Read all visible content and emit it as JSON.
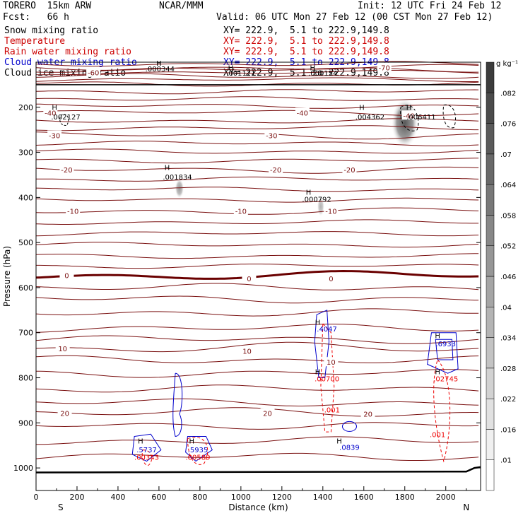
{
  "header": {
    "model": "TORERO  15km ARW",
    "org": "NCAR/MMM",
    "init": "Init: 12 UTC Fri 24 Feb 12",
    "fcst": "Fcst:   66 h",
    "valid": "Valid: 06 UTC Mon 27 Feb 12 (00 CST Mon 27 Feb 12)",
    "fields": [
      {
        "label": "Snow mixing ratio",
        "xy": "XY= 222.9,  5.1 to 222.9,149.8",
        "color": "#000000"
      },
      {
        "label": "Temperature",
        "xy": "XY= 222.9,  5.1 to 222.9,149.8",
        "color": "#cc0000"
      },
      {
        "label": "Rain water mixing ratio",
        "xy": "XY= 222.9,  5.1 to 222.9,149.8",
        "color": "#cc0000"
      },
      {
        "label": "Cloud water mixing ratio",
        "xy": "XY= 222.9,  5.1 to 222.9,149.8",
        "color": "#0000cc"
      },
      {
        "label": "Cloud ice mixing ratio",
        "xy": "XY= 222.9,  5.1 to 222.9,149.8",
        "color": "#000000"
      }
    ]
  },
  "colors": {
    "temperature": "#7a1010",
    "zero_isotherm": "#6a0000",
    "cloud_water": "#0000cc",
    "rain": "#ee0000",
    "ground": "#000000"
  },
  "chart_data": {
    "type": "cross-section",
    "xlabel": "Distance (km)",
    "ylabel": "Pressure (hPa)",
    "xlim": [
      0,
      2170
    ],
    "ylim": [
      1050,
      100
    ],
    "x_ticks": [
      0,
      200,
      400,
      600,
      800,
      1000,
      1200,
      1400,
      1600,
      1800,
      2000
    ],
    "y_ticks": [
      200,
      300,
      400,
      500,
      600,
      700,
      800,
      900,
      1000
    ],
    "end_labels": {
      "left": "S",
      "right": "N"
    },
    "colorbar": {
      "unit": "g kg⁻¹",
      "levels": [
        ".01",
        ".016",
        ".022",
        ".028",
        ".034",
        ".04",
        ".046",
        ".052",
        ".058",
        ".064",
        ".07",
        ".076",
        ".082"
      ]
    },
    "temperature_isotherms": [
      {
        "t": -70,
        "p": 112
      },
      {
        "t": -60,
        "p": 123
      },
      {
        "t": -50,
        "p": 139
      },
      {
        "t": -40,
        "p": 212
      },
      {
        "t": -30,
        "p": 262
      },
      {
        "t": -20,
        "p": 338
      },
      {
        "t": -10,
        "p": 430
      },
      {
        "t": 0,
        "p": 573
      },
      {
        "t": 10,
        "p": 735
      },
      {
        "t": 20,
        "p": 878
      }
    ],
    "isotherm_labels": [
      {
        "text": "-40",
        "x": 70,
        "p": 212
      },
      {
        "text": "-40",
        "x": 1300,
        "p": 212
      },
      {
        "text": "-40",
        "x": 1820,
        "p": 218
      },
      {
        "text": "-30",
        "x": 90,
        "p": 262
      },
      {
        "text": "-30",
        "x": 1150,
        "p": 262
      },
      {
        "text": "-20",
        "x": 150,
        "p": 338
      },
      {
        "text": "-20",
        "x": 1170,
        "p": 338
      },
      {
        "text": "-20",
        "x": 1530,
        "p": 338
      },
      {
        "text": "-10",
        "x": 180,
        "p": 430
      },
      {
        "text": "-10",
        "x": 1000,
        "p": 430
      },
      {
        "text": "-10",
        "x": 1440,
        "p": 430
      },
      {
        "text": "0",
        "x": 150,
        "p": 573
      },
      {
        "text": "0",
        "x": 1040,
        "p": 580
      },
      {
        "text": "0",
        "x": 1440,
        "p": 580
      },
      {
        "text": "10",
        "x": 130,
        "p": 735
      },
      {
        "text": "10",
        "x": 1030,
        "p": 740
      },
      {
        "text": "10",
        "x": 1440,
        "p": 765
      },
      {
        "text": "20",
        "x": 140,
        "p": 878
      },
      {
        "text": "20",
        "x": 1130,
        "p": 878
      },
      {
        "text": "20",
        "x": 1620,
        "p": 880
      },
      {
        "text": "-70",
        "x": 1700,
        "p": 112
      },
      {
        "text": "-60",
        "x": 280,
        "p": 123
      }
    ],
    "maxima": [
      {
        "text": ".000344",
        "x": 605,
        "p": 120,
        "color": "black"
      },
      {
        "text": ".001171",
        "x": 1000,
        "p": 130,
        "color": "black"
      },
      {
        "text": ".000154",
        "x": 1400,
        "p": 130,
        "color": "black"
      },
      {
        "text": ".002127",
        "x": 145,
        "p": 227,
        "color": "black"
      },
      {
        "text": ".004362",
        "x": 1630,
        "p": 227,
        "color": "black"
      },
      {
        "text": ".006411",
        "x": 1880,
        "p": 227,
        "color": "black"
      },
      {
        "text": ".001834",
        "x": 690,
        "p": 360,
        "color": "black"
      },
      {
        "text": ".000792",
        "x": 1370,
        "p": 410,
        "color": "black"
      },
      {
        "text": ".4047",
        "x": 1420,
        "p": 697,
        "color": "blue"
      },
      {
        "text": ".00700",
        "x": 1420,
        "p": 808,
        "color": "red"
      },
      {
        "text": ".001",
        "x": 1445,
        "p": 877,
        "color": "red"
      },
      {
        "text": ".6933",
        "x": 2000,
        "p": 730,
        "color": "blue"
      },
      {
        "text": ".02745",
        "x": 2000,
        "p": 808,
        "color": "red"
      },
      {
        "text": ".001",
        "x": 1960,
        "p": 932,
        "color": "red"
      },
      {
        "text": ".5737",
        "x": 540,
        "p": 965,
        "color": "blue"
      },
      {
        "text": ".00343",
        "x": 540,
        "p": 982,
        "color": "red"
      },
      {
        "text": ".5935",
        "x": 790,
        "p": 965,
        "color": "blue"
      },
      {
        "text": ".00589",
        "x": 790,
        "p": 982,
        "color": "red"
      },
      {
        "text": ".0839",
        "x": 1530,
        "p": 960,
        "color": "blue"
      }
    ],
    "max_markers": [
      {
        "x": 600,
        "p": 108
      },
      {
        "x": 950,
        "p": 118
      },
      {
        "x": 1350,
        "p": 118
      },
      {
        "x": 90,
        "p": 206
      },
      {
        "x": 1590,
        "p": 206
      },
      {
        "x": 1820,
        "p": 206
      },
      {
        "x": 640,
        "p": 339
      },
      {
        "x": 1330,
        "p": 394
      },
      {
        "x": 1375,
        "p": 682
      },
      {
        "x": 1375,
        "p": 792
      },
      {
        "x": 1960,
        "p": 712
      },
      {
        "x": 1960,
        "p": 792
      },
      {
        "x": 510,
        "p": 946
      },
      {
        "x": 760,
        "p": 946
      },
      {
        "x": 1480,
        "p": 946
      }
    ],
    "snow_shading": [
      {
        "x": 1800,
        "p": 235,
        "rx": 30,
        "rp": 55,
        "opacity": 0.75
      },
      {
        "x": 700,
        "p": 380,
        "rx": 10,
        "rp": 22,
        "opacity": 0.45
      },
      {
        "x": 1390,
        "p": 420,
        "rx": 8,
        "rp": 22,
        "opacity": 0.35
      }
    ]
  }
}
